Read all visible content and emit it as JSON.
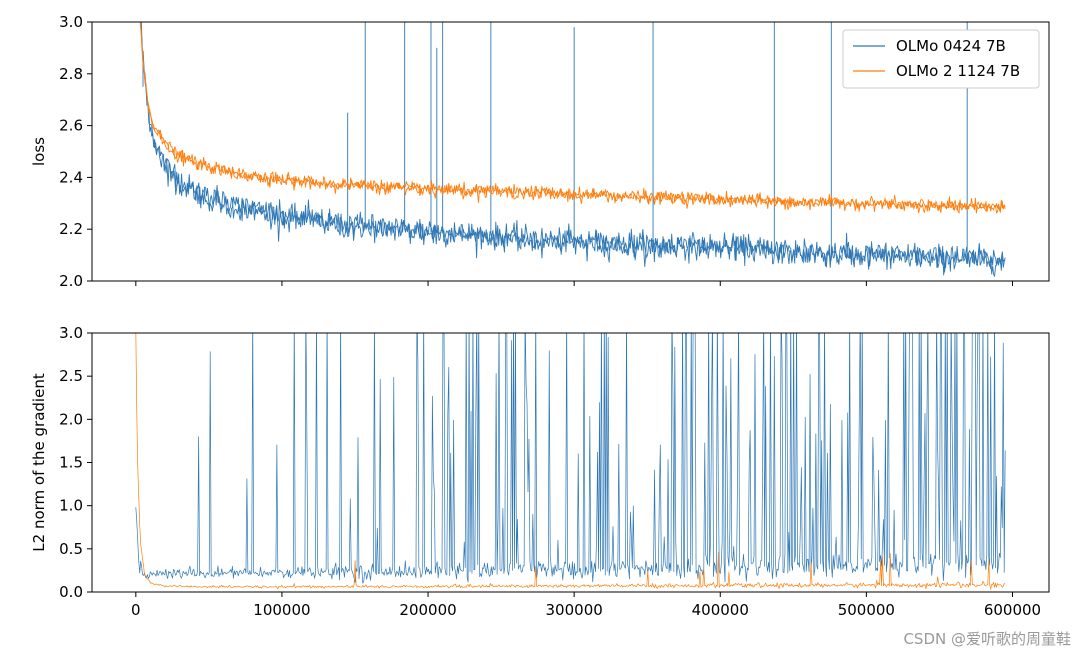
{
  "watermark": "CSDN @爱听歌的周童鞋",
  "colors": {
    "series_0": "#2f78b5",
    "series_1": "#ff7f0e"
  },
  "chart_data": [
    {
      "type": "line",
      "xlabel": "",
      "ylabel": "loss",
      "xlim": [
        -30000,
        625000
      ],
      "ylim": [
        2.0,
        3.0
      ],
      "yticks": [
        2.0,
        2.2,
        2.4,
        2.6,
        2.8,
        3.0
      ],
      "ytick_labels": [
        "2.0",
        "2.2",
        "2.4",
        "2.6",
        "2.8",
        "3.0"
      ],
      "xticks": [
        0,
        100000,
        200000,
        300000,
        400000,
        500000,
        600000
      ],
      "xtick_labels_visible": false,
      "legend": "top-right",
      "series": [
        {
          "name": "OLMo 0424 7B",
          "color": "#2f78b5",
          "x": [
            3000,
            5000,
            8000,
            12000,
            20000,
            30000,
            50000,
            75000,
            100000,
            150000,
            200000,
            250000,
            300000,
            350000,
            400000,
            450000,
            500000,
            550000,
            595000
          ],
          "y": [
            3.0,
            2.85,
            2.68,
            2.55,
            2.45,
            2.38,
            2.32,
            2.28,
            2.25,
            2.21,
            2.19,
            2.17,
            2.15,
            2.14,
            2.13,
            2.11,
            2.1,
            2.09,
            2.08
          ],
          "noise": 0.025,
          "spikes": [
            [
              4900,
              2.75
            ],
            [
              145000,
              2.65
            ],
            [
              157000,
              3.0
            ],
            [
              184000,
              3.0
            ],
            [
              202000,
              3.0
            ],
            [
              206000,
              2.9
            ],
            [
              210000,
              3.0
            ],
            [
              243000,
              3.0
            ],
            [
              300000,
              2.98
            ],
            [
              354000,
              3.0
            ],
            [
              437000,
              3.0
            ],
            [
              476000,
              3.0
            ],
            [
              569000,
              3.0
            ]
          ]
        },
        {
          "name": "OLMo 2 1124 7B",
          "color": "#ff7f0e",
          "x": [
            3000,
            5000,
            8000,
            12000,
            20000,
            30000,
            50000,
            75000,
            100000,
            150000,
            200000,
            250000,
            300000,
            350000,
            400000,
            450000,
            500000,
            550000,
            595000
          ],
          "y": [
            3.0,
            2.85,
            2.7,
            2.6,
            2.53,
            2.48,
            2.44,
            2.41,
            2.39,
            2.37,
            2.355,
            2.345,
            2.335,
            2.325,
            2.315,
            2.305,
            2.3,
            2.29,
            2.285
          ],
          "noise": 0.012,
          "spikes": []
        }
      ]
    },
    {
      "type": "line",
      "xlabel": "",
      "ylabel": "L2 norm of the gradient",
      "xlim": [
        -30000,
        625000
      ],
      "ylim": [
        0.0,
        3.0
      ],
      "yticks": [
        0.0,
        0.5,
        1.0,
        1.5,
        2.0,
        2.5,
        3.0
      ],
      "ytick_labels": [
        "0.0",
        "0.5",
        "1.0",
        "1.5",
        "2.0",
        "2.5",
        "3.0"
      ],
      "xticks": [
        0,
        100000,
        200000,
        300000,
        400000,
        500000,
        600000
      ],
      "xtick_labels": [
        "0",
        "100000",
        "200000",
        "300000",
        "400000",
        "500000",
        "600000"
      ],
      "series": [
        {
          "name": "OLMo 0424 7B",
          "color": "#2f78b5",
          "x": [
            0,
            2000,
            5000,
            10000,
            20000,
            50000,
            100000,
            200000,
            300000,
            400000,
            500000,
            595000
          ],
          "y": [
            1.0,
            0.35,
            0.22,
            0.2,
            0.21,
            0.22,
            0.22,
            0.24,
            0.26,
            0.28,
            0.3,
            0.33
          ],
          "noise": 0.05,
          "spike_density": "increasing",
          "spike_max": 3.0
        },
        {
          "name": "OLMo 2 1124 7B",
          "color": "#ff7f0e",
          "x": [
            0,
            1000,
            3000,
            6000,
            10000,
            20000,
            50000,
            100000,
            200000,
            300000,
            400000,
            500000,
            595000
          ],
          "y": [
            3.0,
            1.6,
            0.6,
            0.2,
            0.1,
            0.07,
            0.06,
            0.06,
            0.065,
            0.07,
            0.075,
            0.08,
            0.08
          ],
          "noise": 0.01,
          "spike_density": "sparse",
          "spike_max": 0.55
        }
      ]
    }
  ]
}
